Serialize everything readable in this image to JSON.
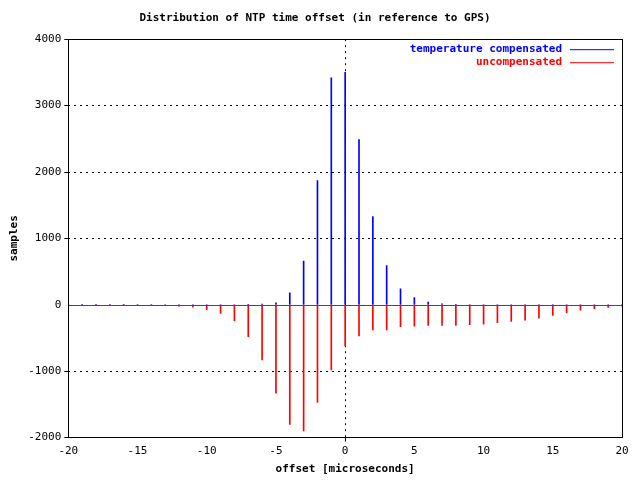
{
  "chart_data": {
    "type": "bar",
    "title": "Distribution of NTP time offset (in reference to GPS)",
    "xlabel": "offset [microseconds]",
    "ylabel": "samples",
    "x": [
      -20,
      -19,
      -18,
      -17,
      -16,
      -15,
      -14,
      -13,
      -12,
      -11,
      -10,
      -9,
      -8,
      -7,
      -6,
      -5,
      -4,
      -3,
      -2,
      -1,
      0,
      1,
      2,
      3,
      4,
      5,
      6,
      7,
      8,
      9,
      10,
      11,
      12,
      13,
      14,
      15,
      16,
      17,
      18,
      19,
      20
    ],
    "series": [
      {
        "name": "temperature compensated",
        "color": "#0000ff",
        "values": [
          0,
          0,
          0,
          0,
          0,
          0,
          0,
          0,
          0,
          0,
          0,
          0,
          0,
          5,
          10,
          30,
          180,
          660,
          1870,
          3420,
          3500,
          2490,
          1330,
          590,
          240,
          110,
          40,
          15,
          5,
          0,
          0,
          0,
          0,
          0,
          0,
          0,
          0,
          0,
          0,
          0,
          0
        ]
      },
      {
        "name": "uncompensated",
        "color": "#ff0000",
        "values": [
          0,
          0,
          0,
          0,
          0,
          -3,
          -5,
          -10,
          -20,
          -35,
          -75,
          -130,
          -240,
          -480,
          -830,
          -1330,
          -1800,
          -1900,
          -1470,
          -980,
          -620,
          -470,
          -380,
          -380,
          -330,
          -320,
          -310,
          -310,
          -310,
          -300,
          -290,
          -270,
          -250,
          -230,
          -200,
          -160,
          -120,
          -80,
          -60,
          -40,
          -20
        ]
      }
    ],
    "xlim": [
      -20,
      20
    ],
    "xticks": [
      -20,
      -15,
      -10,
      -5,
      0,
      5,
      10,
      15,
      20
    ],
    "ylim": [
      -2000,
      4000
    ],
    "yticks": [
      -2000,
      -1000,
      0,
      1000,
      2000,
      3000,
      4000
    ],
    "grid": true,
    "legend": "top-right"
  }
}
